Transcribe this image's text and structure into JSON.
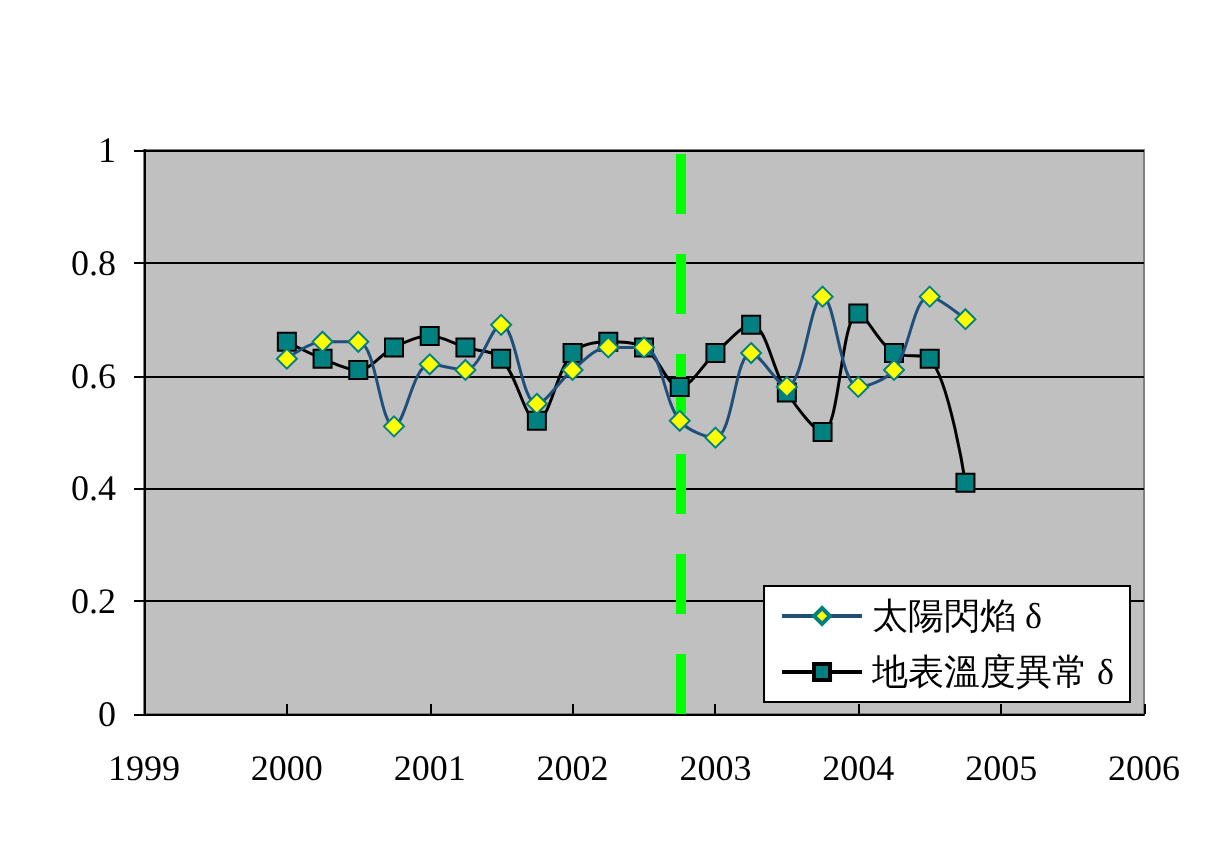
{
  "chart_data": {
    "type": "line",
    "x": [
      2000,
      2000.25,
      2000.5,
      2000.75,
      2001,
      2001.25,
      2001.5,
      2001.75,
      2002,
      2002.25,
      2002.5,
      2002.75,
      2003,
      2003.25,
      2003.5,
      2003.75,
      2004,
      2004.25,
      2004.5,
      2004.75
    ],
    "series": [
      {
        "name": "太陽閃焰 δ",
        "color": "#ffff00",
        "marker": "diamond",
        "values": [
          0.63,
          0.66,
          0.66,
          0.51,
          0.62,
          0.61,
          0.69,
          0.55,
          0.61,
          0.65,
          0.65,
          0.52,
          0.49,
          0.64,
          0.58,
          0.74,
          0.58,
          0.61,
          0.74,
          0.7
        ]
      },
      {
        "name": "地表溫度異常 δ",
        "color": "#008080",
        "marker": "square",
        "values": [
          0.66,
          0.63,
          0.61,
          0.65,
          0.67,
          0.65,
          0.63,
          0.52,
          0.64,
          0.66,
          0.65,
          0.58,
          0.64,
          0.69,
          0.57,
          0.5,
          0.71,
          0.64,
          0.63,
          0.41
        ]
      }
    ],
    "xlim": [
      1999,
      2006
    ],
    "xticks": [
      1999,
      2000,
      2001,
      2002,
      2003,
      2004,
      2005,
      2006
    ],
    "ylim": [
      0,
      1
    ],
    "yticks": [
      0,
      0.2,
      0.4,
      0.6,
      0.8,
      1
    ],
    "grid": "y",
    "legend": "bottom right",
    "ref_lines": [
      {
        "axis": "x",
        "value": 2002.75,
        "color": "#00ff00",
        "line_style": "dashed"
      }
    ]
  }
}
